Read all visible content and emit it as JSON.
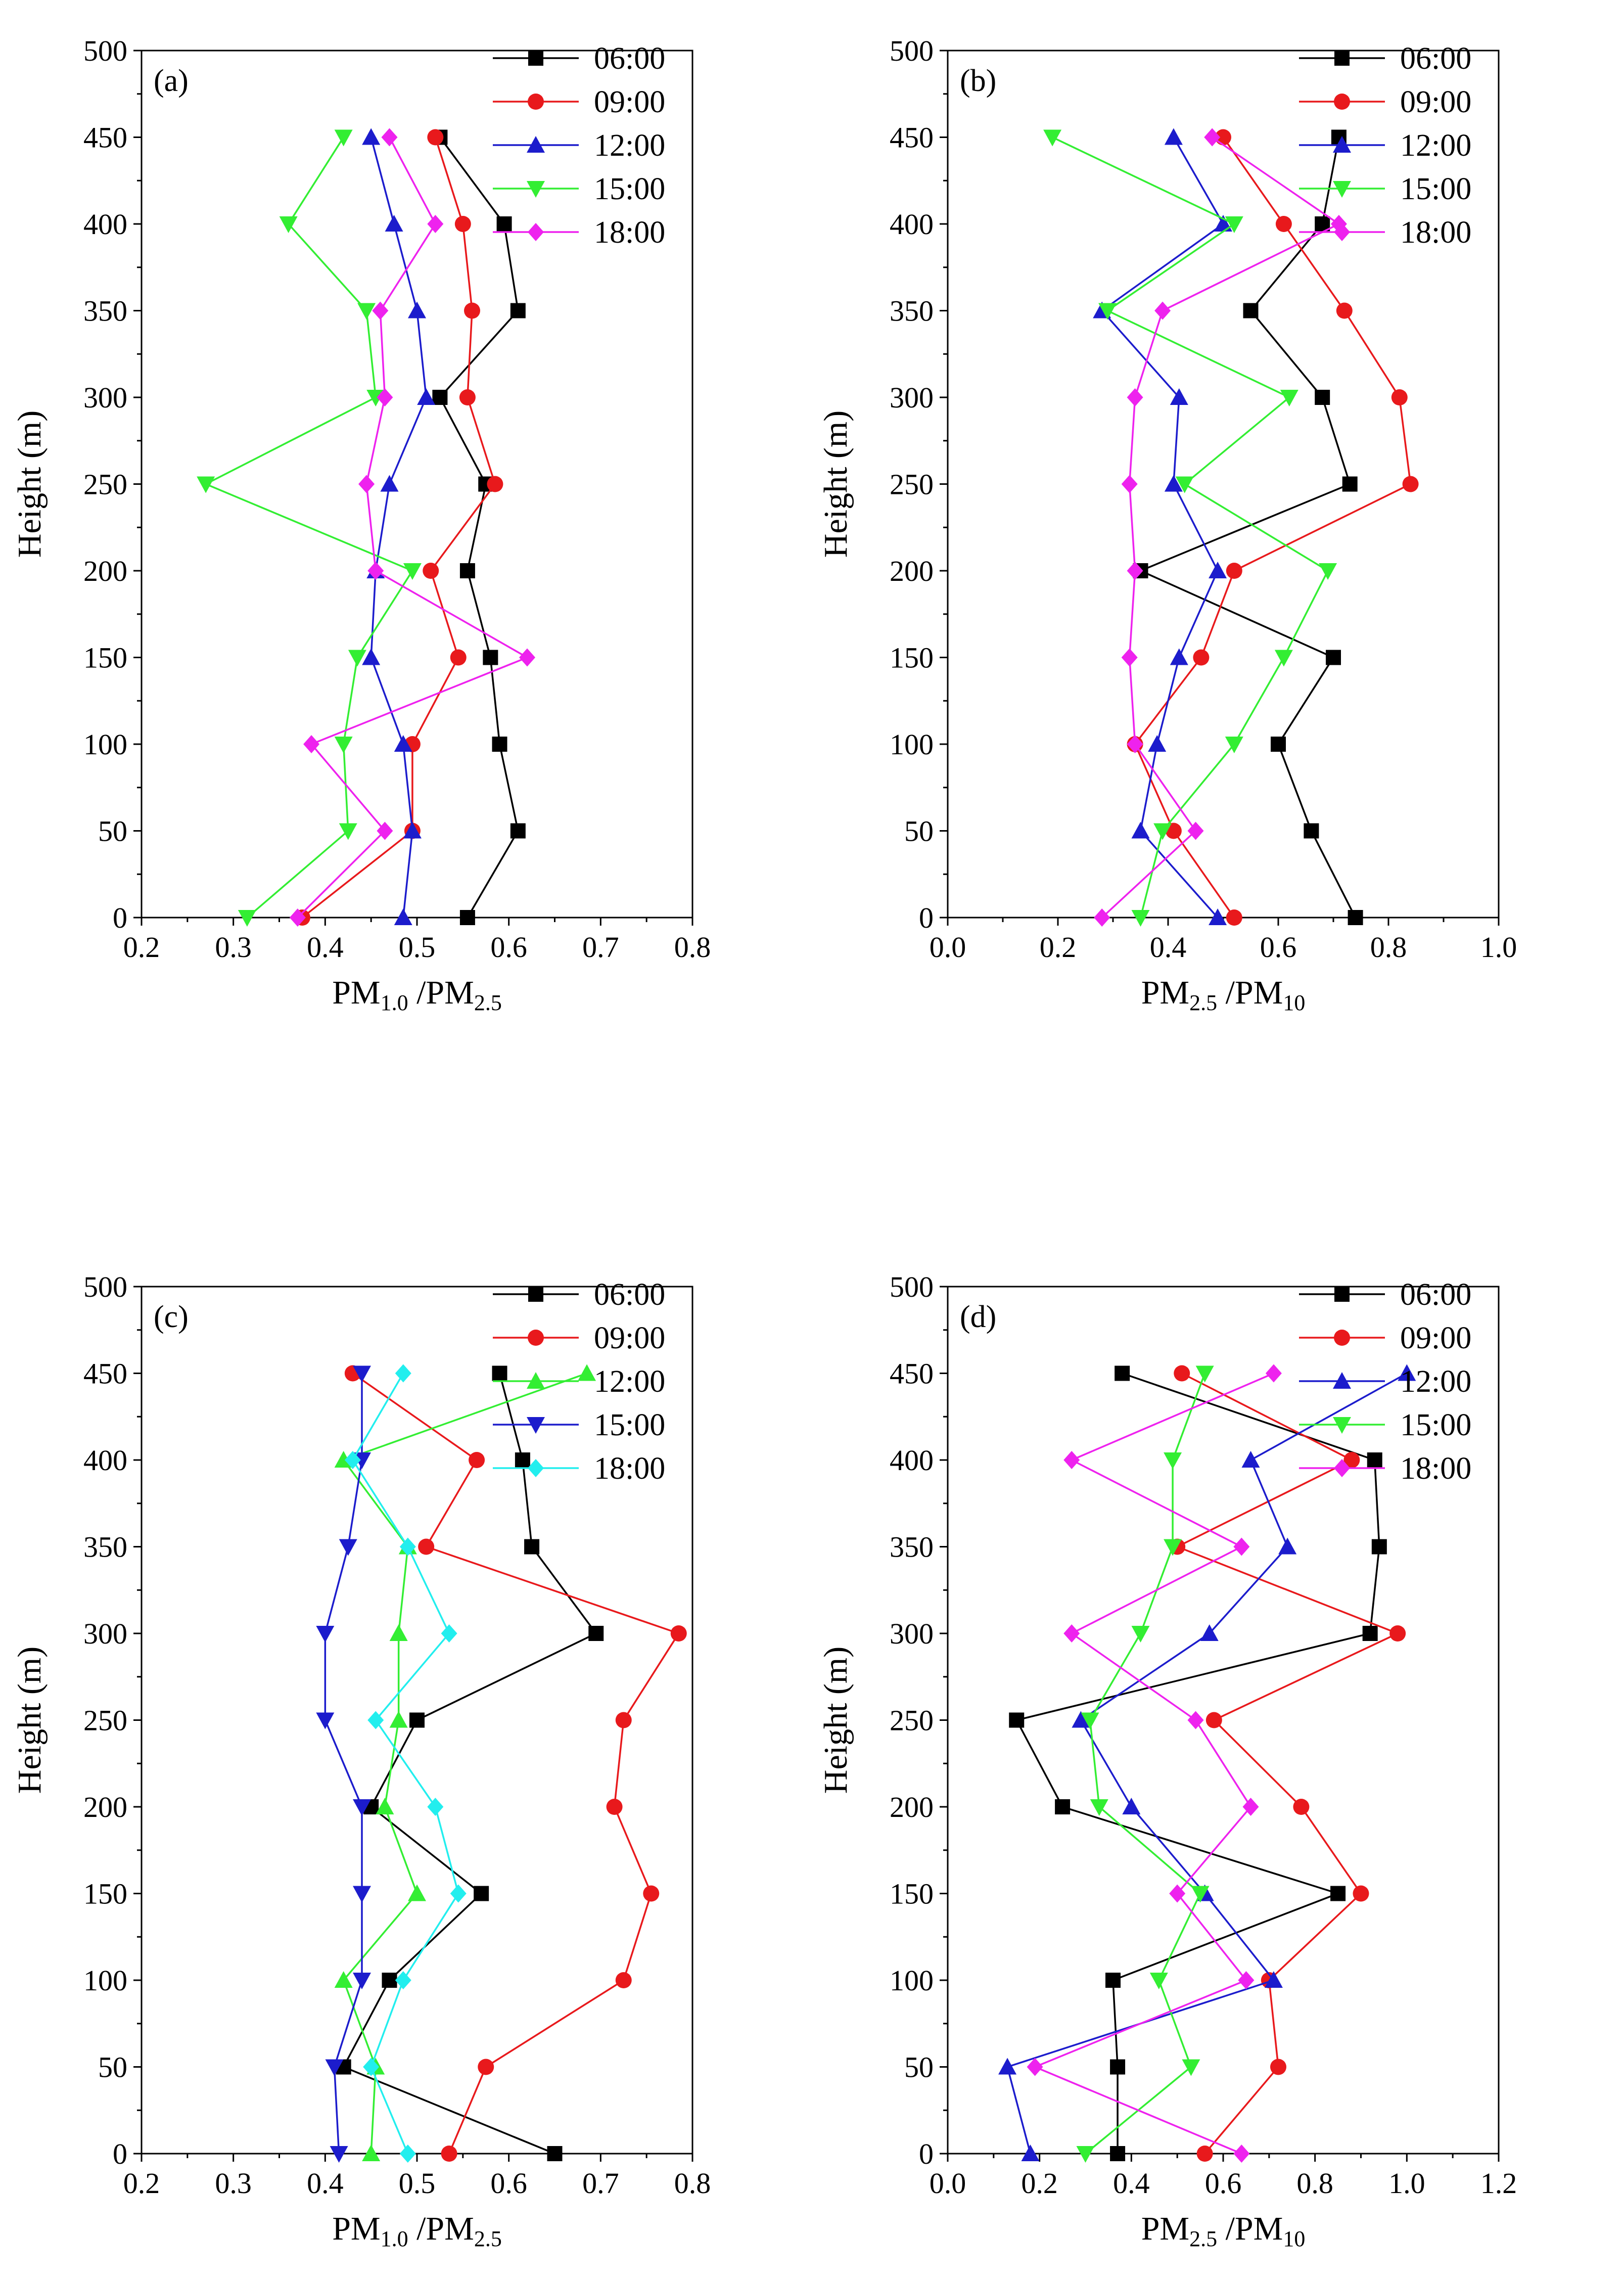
{
  "chart_data": [
    {
      "type": "line",
      "panel_label": "(a)",
      "xlabel": {
        "main": "PM",
        "sub1": "1.0",
        "mid": " /PM",
        "sub2": "2.5"
      },
      "ylabel": "Height (m)",
      "xlim": [
        0.2,
        0.8
      ],
      "ylim": [
        0,
        500
      ],
      "xticks": [
        "0.2",
        "0.3",
        "0.4",
        "0.5",
        "0.6",
        "0.7",
        "0.8"
      ],
      "yticks": [
        "0",
        "50",
        "100",
        "150",
        "200",
        "250",
        "300",
        "350",
        "400",
        "450",
        "500"
      ],
      "y": [
        0,
        50,
        100,
        150,
        200,
        250,
        300,
        350,
        400,
        450
      ],
      "legend_position": "top-right",
      "series": [
        {
          "name": "06:00",
          "color": "#000000",
          "marker": "square",
          "values": [
            0.555,
            0.61,
            0.59,
            0.58,
            0.555,
            0.575,
            0.525,
            0.61,
            0.595,
            0.525
          ]
        },
        {
          "name": "09:00",
          "color": "#e8191c",
          "marker": "circle",
          "values": [
            0.375,
            0.495,
            0.495,
            0.545,
            0.515,
            0.585,
            0.555,
            0.56,
            0.55,
            0.52
          ]
        },
        {
          "name": "12:00",
          "color": "#1c1ccc",
          "marker": "triangle-up",
          "values": [
            0.485,
            0.495,
            0.485,
            0.45,
            0.455,
            0.47,
            0.51,
            0.5,
            0.475,
            0.45
          ]
        },
        {
          "name": "15:00",
          "color": "#33ee33",
          "marker": "triangle-down",
          "values": [
            0.315,
            0.425,
            0.42,
            0.435,
            0.495,
            0.27,
            0.455,
            0.445,
            0.36,
            0.42
          ]
        },
        {
          "name": "18:00",
          "color": "#ee22ee",
          "marker": "diamond",
          "values": [
            0.37,
            0.465,
            0.385,
            0.62,
            0.455,
            0.445,
            0.465,
            0.46,
            0.52,
            0.47
          ]
        }
      ]
    },
    {
      "type": "line",
      "panel_label": "(b)",
      "xlabel": {
        "main": "PM",
        "sub1": "2.5",
        "mid": " /PM",
        "sub2": "10"
      },
      "ylabel": "Height (m)",
      "xlim": [
        0.0,
        1.0
      ],
      "ylim": [
        0,
        500
      ],
      "xticks": [
        "0.0",
        "0.2",
        "0.4",
        "0.6",
        "0.8",
        "1.0"
      ],
      "yticks": [
        "0",
        "50",
        "100",
        "150",
        "200",
        "250",
        "300",
        "350",
        "400",
        "450",
        "500"
      ],
      "y": [
        0,
        50,
        100,
        150,
        200,
        250,
        300,
        350,
        400,
        450
      ],
      "legend_position": "top-right",
      "series": [
        {
          "name": "06:00",
          "color": "#000000",
          "marker": "square",
          "values": [
            0.74,
            0.66,
            0.6,
            0.7,
            0.35,
            0.73,
            0.68,
            0.55,
            0.68,
            0.71
          ]
        },
        {
          "name": "09:00",
          "color": "#e8191c",
          "marker": "circle",
          "values": [
            0.52,
            0.41,
            0.34,
            0.46,
            0.52,
            0.84,
            0.82,
            0.72,
            0.61,
            0.5
          ]
        },
        {
          "name": "12:00",
          "color": "#1c1ccc",
          "marker": "triangle-up",
          "values": [
            0.49,
            0.35,
            0.38,
            0.42,
            0.49,
            0.41,
            0.42,
            0.28,
            0.5,
            0.41
          ]
        },
        {
          "name": "15:00",
          "color": "#33ee33",
          "marker": "triangle-down",
          "values": [
            0.35,
            0.39,
            0.52,
            0.61,
            0.69,
            0.43,
            0.62,
            0.29,
            0.52,
            0.19
          ]
        },
        {
          "name": "18:00",
          "color": "#ee22ee",
          "marker": "diamond",
          "values": [
            0.28,
            0.45,
            0.34,
            0.33,
            0.34,
            0.33,
            0.34,
            0.39,
            0.71,
            0.48
          ]
        }
      ]
    },
    {
      "type": "line",
      "panel_label": "(c)",
      "xlabel": {
        "main": "PM",
        "sub1": "1.0",
        "mid": " /PM",
        "sub2": "2.5"
      },
      "ylabel": "Height (m)",
      "xlim": [
        0.2,
        0.8
      ],
      "ylim": [
        0,
        500
      ],
      "xticks": [
        "0.2",
        "0.3",
        "0.4",
        "0.5",
        "0.6",
        "0.7",
        "0.8"
      ],
      "yticks": [
        "0",
        "50",
        "100",
        "150",
        "200",
        "250",
        "300",
        "350",
        "400",
        "450",
        "500"
      ],
      "y": [
        0,
        50,
        100,
        150,
        200,
        250,
        300,
        350,
        400,
        450
      ],
      "legend_position": "top-right",
      "series": [
        {
          "name": "06:00",
          "color": "#000000",
          "marker": "square",
          "values": [
            0.65,
            0.42,
            0.47,
            0.57,
            0.45,
            0.5,
            0.695,
            0.625,
            0.615,
            0.59
          ]
        },
        {
          "name": "09:00",
          "color": "#e8191c",
          "marker": "circle",
          "values": [
            0.535,
            0.575,
            0.725,
            0.755,
            0.715,
            0.725,
            0.785,
            0.51,
            0.565,
            0.43
          ]
        },
        {
          "name": "12:00",
          "color": "#33ee33",
          "marker": "triangle-up",
          "values": [
            0.45,
            0.455,
            0.42,
            0.5,
            0.465,
            0.48,
            0.48,
            0.49,
            0.42,
            0.685
          ]
        },
        {
          "name": "15:00",
          "color": "#1c1ccc",
          "marker": "triangle-down",
          "values": [
            0.415,
            0.41,
            0.44,
            0.44,
            0.44,
            0.4,
            0.4,
            0.425,
            0.44,
            0.44
          ]
        },
        {
          "name": "18:00",
          "color": "#22eeee",
          "marker": "diamond",
          "values": [
            0.49,
            0.45,
            0.485,
            0.545,
            0.52,
            0.455,
            0.535,
            0.49,
            0.43,
            0.485
          ]
        }
      ]
    },
    {
      "type": "line",
      "panel_label": "(d)",
      "xlabel": {
        "main": "PM",
        "sub1": "2.5",
        "mid": " /PM",
        "sub2": "10"
      },
      "ylabel": "Height (m)",
      "xlim": [
        0.0,
        1.2
      ],
      "ylim": [
        0,
        500
      ],
      "xticks": [
        "0.0",
        "0.2",
        "0.4",
        "0.6",
        "0.8",
        "1.0",
        "1.2"
      ],
      "yticks": [
        "0",
        "50",
        "100",
        "150",
        "200",
        "250",
        "300",
        "350",
        "400",
        "450",
        "500"
      ],
      "y": [
        0,
        50,
        100,
        150,
        200,
        250,
        300,
        350,
        400,
        450
      ],
      "legend_position": "top-right",
      "series": [
        {
          "name": "06:00",
          "color": "#000000",
          "marker": "square",
          "values": [
            0.37,
            0.37,
            0.36,
            0.85,
            0.25,
            0.15,
            0.92,
            0.94,
            0.93,
            0.38
          ]
        },
        {
          "name": "09:00",
          "color": "#e8191c",
          "marker": "circle",
          "values": [
            0.56,
            0.72,
            0.7,
            0.9,
            0.77,
            0.58,
            0.98,
            0.5,
            0.88,
            0.51
          ]
        },
        {
          "name": "12:00",
          "color": "#1c1ccc",
          "marker": "triangle-up",
          "values": [
            0.18,
            0.13,
            0.71,
            0.56,
            0.4,
            0.29,
            0.57,
            0.74,
            0.66,
            1.0
          ]
        },
        {
          "name": "15:00",
          "color": "#33ee33",
          "marker": "triangle-down",
          "values": [
            0.3,
            0.53,
            0.46,
            0.55,
            0.33,
            0.31,
            0.42,
            0.49,
            0.49,
            0.56
          ]
        },
        {
          "name": "18:00",
          "color": "#ee22ee",
          "marker": "diamond",
          "values": [
            0.64,
            0.19,
            0.65,
            0.5,
            0.66,
            0.54,
            0.27,
            0.64,
            0.27,
            0.71
          ]
        }
      ]
    }
  ]
}
